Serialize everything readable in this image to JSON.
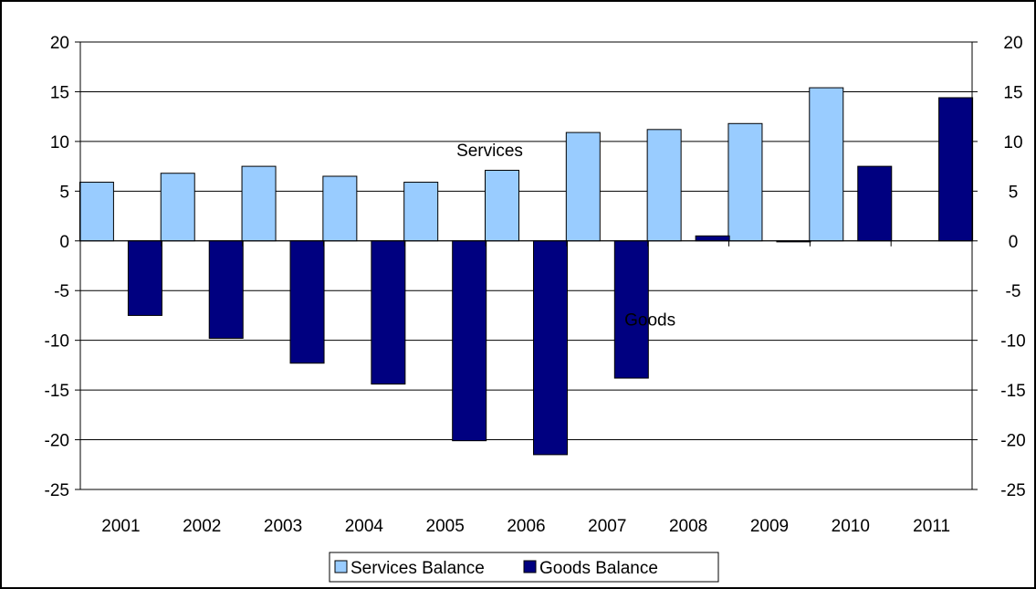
{
  "chart_data": {
    "type": "bar",
    "categories": [
      "2001",
      "2002",
      "2003",
      "2004",
      "2005",
      "2006",
      "2007",
      "2008",
      "2009",
      "2010",
      "2011"
    ],
    "series": [
      {
        "name": "Services Balance",
        "color": "#99ccff",
        "values": [
          5.9,
          6.8,
          7.5,
          6.5,
          5.9,
          7.1,
          10.9,
          11.2,
          11.8,
          15.4,
          null
        ]
      },
      {
        "name": "Goods Balance",
        "color": "#000080",
        "values": [
          -7.5,
          -9.8,
          -12.3,
          -14.4,
          -20.1,
          -21.5,
          -13.8,
          0.5,
          -0.1,
          7.5,
          14.4
        ]
      }
    ],
    "ylim": [
      -25,
      20
    ],
    "y_ticks": [
      20,
      15,
      10,
      5,
      0,
      -5,
      -10,
      -15,
      -20,
      -25
    ],
    "y_tick_labels": [
      "20",
      "15",
      "10",
      "5",
      "0",
      "-5",
      "-10",
      "-15",
      "-20",
      "-25"
    ],
    "secondary_y_axis": true,
    "grid": true,
    "legend_position": "bottom-center",
    "annotations": [
      {
        "text": "Services",
        "x": "2006",
        "y": 8.5
      },
      {
        "text": "Goods",
        "x": "2008",
        "y": -8.5
      }
    ]
  }
}
